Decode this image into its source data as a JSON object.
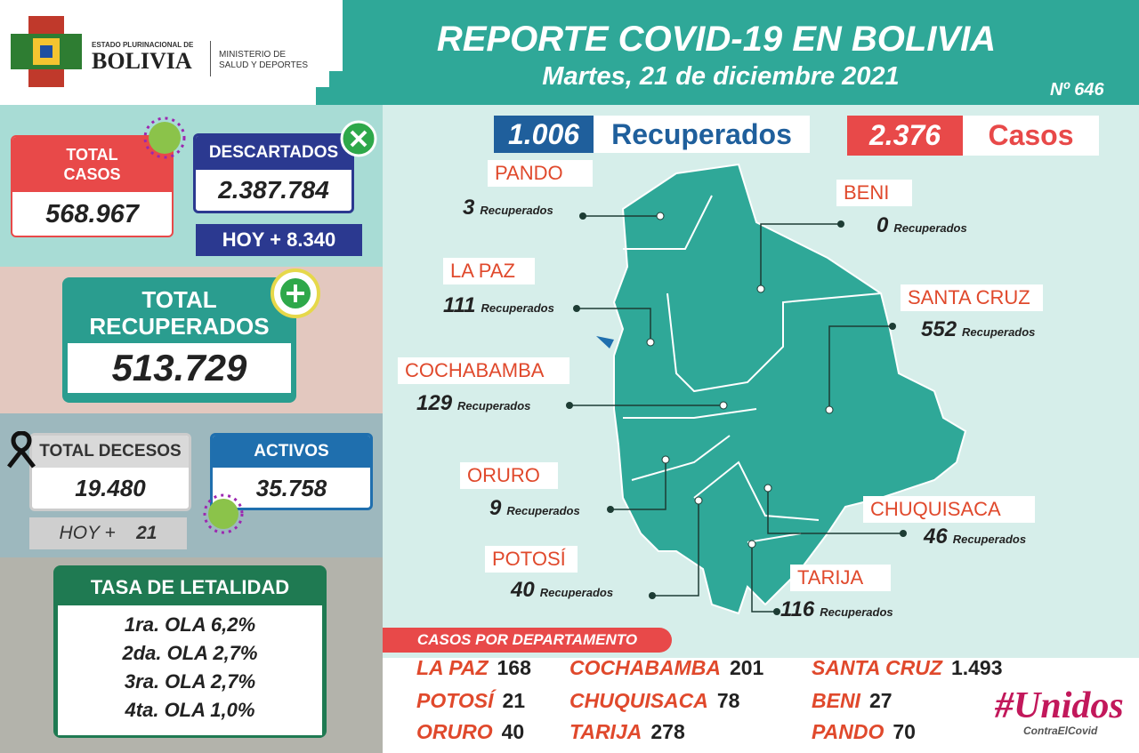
{
  "header": {
    "title": "REPORTE COVID-19 EN BOLIVIA",
    "date": "Martes, 21 de diciembre 2021",
    "number": "Nº 646",
    "logo_small": "ESTADO PLURINACIONAL DE",
    "logo_big": "BOLIVIA",
    "ministry": [
      "MINISTERIO DE",
      "SALUD Y DEPORTES"
    ]
  },
  "summary": {
    "total_casos": {
      "label": [
        "TOTAL",
        "CASOS"
      ],
      "value": "568.967"
    },
    "descartados": {
      "label": "DESCARTADOS",
      "value": "2.387.784",
      "today": "HOY + 8.340"
    },
    "total_recuperados": {
      "label": [
        "TOTAL",
        "RECUPERADOS"
      ],
      "value": "513.729"
    },
    "decesos": {
      "label": "TOTAL DECESOS",
      "value": "19.480",
      "today_label": "HOY +",
      "today_value": "21"
    },
    "activos": {
      "label": "ACTIVOS",
      "value": "35.758"
    }
  },
  "lethality": {
    "title": "TASA DE LETALIDAD",
    "rows": [
      "1ra. OLA 6,2%",
      "2da. OLA 2,7%",
      "3ra. OLA 2,7%",
      "4ta. OLA 1,0%"
    ]
  },
  "today": {
    "recuperados": {
      "value": "1.006",
      "label": "Recuperados"
    },
    "casos": {
      "value": "2.376",
      "label": "Casos"
    }
  },
  "map": {
    "unit": "Recuperados",
    "departments": [
      {
        "name": "PANDO",
        "value": "3"
      },
      {
        "name": "BENI",
        "value": "0"
      },
      {
        "name": "LA PAZ",
        "value": "111"
      },
      {
        "name": "SANTA CRUZ",
        "value": "552"
      },
      {
        "name": "COCHABAMBA",
        "value": "129"
      },
      {
        "name": "ORURO",
        "value": "9"
      },
      {
        "name": "CHUQUISACA",
        "value": "46"
      },
      {
        "name": "POTOSÍ",
        "value": "40"
      },
      {
        "name": "TARIJA",
        "value": "116"
      }
    ]
  },
  "cases_by_department": {
    "title": "CASOS POR DEPARTAMENTO",
    "rows": [
      [
        {
          "name": "LA PAZ",
          "value": "168"
        },
        {
          "name": "COCHABAMBA",
          "value": "201"
        },
        {
          "name": "SANTA CRUZ",
          "value": "1.493"
        }
      ],
      [
        {
          "name": "POTOSÍ",
          "value": "21"
        },
        {
          "name": "CHUQUISACA",
          "value": "78"
        },
        {
          "name": "BENI",
          "value": "27"
        }
      ],
      [
        {
          "name": "ORURO",
          "value": "40"
        },
        {
          "name": "TARIJA",
          "value": "278"
        },
        {
          "name": "PANDO",
          "value": "70"
        }
      ]
    ]
  },
  "hashtag": [
    "#Unidos",
    "ContraElCovid"
  ]
}
